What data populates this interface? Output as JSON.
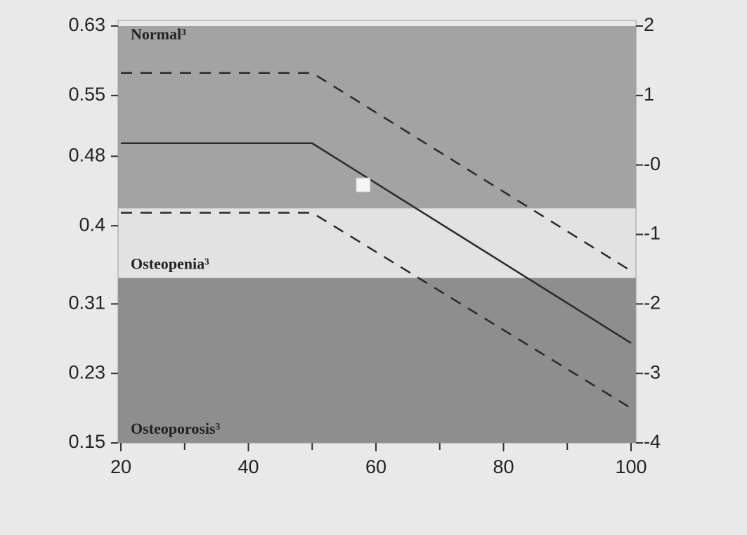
{
  "chart_data": {
    "type": "line",
    "xlim": [
      20,
      100
    ],
    "xticks": [
      20,
      40,
      60,
      80,
      100
    ],
    "x_minor_ticks": [
      30,
      50,
      70,
      90
    ],
    "ylim": [
      0.15,
      0.63
    ],
    "yticks": [
      0.63,
      0.55,
      0.48,
      0.4,
      0.31,
      0.23,
      0.15
    ],
    "y2lim": [
      -4,
      2
    ],
    "y2ticks": [
      2,
      1,
      {
        "value": 0,
        "label": "-0"
      },
      -1,
      -2,
      -3,
      -4
    ],
    "regions": [
      {
        "label": "Normal³",
        "from": 0.42,
        "to": 0.63,
        "color": "#a3a3a3"
      },
      {
        "label": "Osteopenia³",
        "from": 0.34,
        "to": 0.42,
        "color": "#e2e2e2"
      },
      {
        "label": "Osteoporosis³",
        "from": 0.15,
        "to": 0.34,
        "color": "#8e8e8e"
      }
    ],
    "series": [
      {
        "x": [
          20,
          50,
          100
        ],
        "values": [
          0.576,
          0.576,
          0.348
        ],
        "color": "#2a2a2a",
        "style": "dashed"
      },
      {
        "x": [
          20,
          50,
          100
        ],
        "values": [
          0.495,
          0.495,
          0.265
        ],
        "color": "#2a2a2a",
        "style": "solid"
      },
      {
        "x": [
          20,
          50,
          100
        ],
        "values": [
          0.415,
          0.415,
          0.19
        ],
        "color": "#2a2a2a",
        "style": "dashed"
      },
      {
        "x": [
          58
        ],
        "values": [
          0.447
        ],
        "color": "#f4f4f4",
        "style": "marker"
      }
    ]
  }
}
